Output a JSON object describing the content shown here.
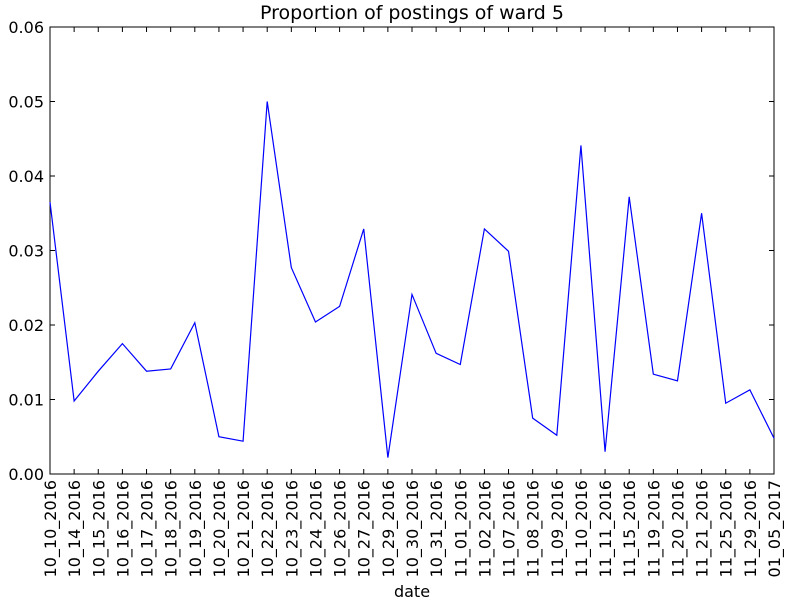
{
  "chart_data": {
    "type": "line",
    "title": "Proportion of postings of ward 5",
    "xlabel": "date",
    "ylabel": "",
    "ylim": [
      0,
      0.06
    ],
    "yticks": [
      "0.00",
      "0.01",
      "0.02",
      "0.03",
      "0.04",
      "0.05",
      "0.06"
    ],
    "grid": false,
    "line_color": "#0000ff",
    "categories": [
      "10_10_2016",
      "10_14_2016",
      "10_15_2016",
      "10_16_2016",
      "10_17_2016",
      "10_18_2016",
      "10_19_2016",
      "10_20_2016",
      "10_21_2016",
      "10_22_2016",
      "10_23_2016",
      "10_24_2016",
      "10_26_2016",
      "10_27_2016",
      "10_29_2016",
      "10_30_2016",
      "10_31_2016",
      "11_01_2016",
      "11_02_2016",
      "11_07_2016",
      "11_08_2016",
      "11_09_2016",
      "11_10_2016",
      "11_11_2016",
      "11_15_2016",
      "11_19_2016",
      "11_20_2016",
      "11_21_2016",
      "11_25_2016",
      "11_29_2016",
      "01_05_2017"
    ],
    "values": [
      0.0365,
      0.0098,
      0.0138,
      0.0175,
      0.0138,
      0.0141,
      0.0203,
      0.005,
      0.0044,
      0.05,
      0.0277,
      0.0204,
      0.0225,
      0.0329,
      0.0022,
      0.0241,
      0.0162,
      0.0147,
      0.0329,
      0.0299,
      0.0075,
      0.0052,
      0.0441,
      0.003,
      0.0372,
      0.0134,
      0.0125,
      0.035,
      0.0095,
      0.0113,
      0.0048
    ]
  }
}
